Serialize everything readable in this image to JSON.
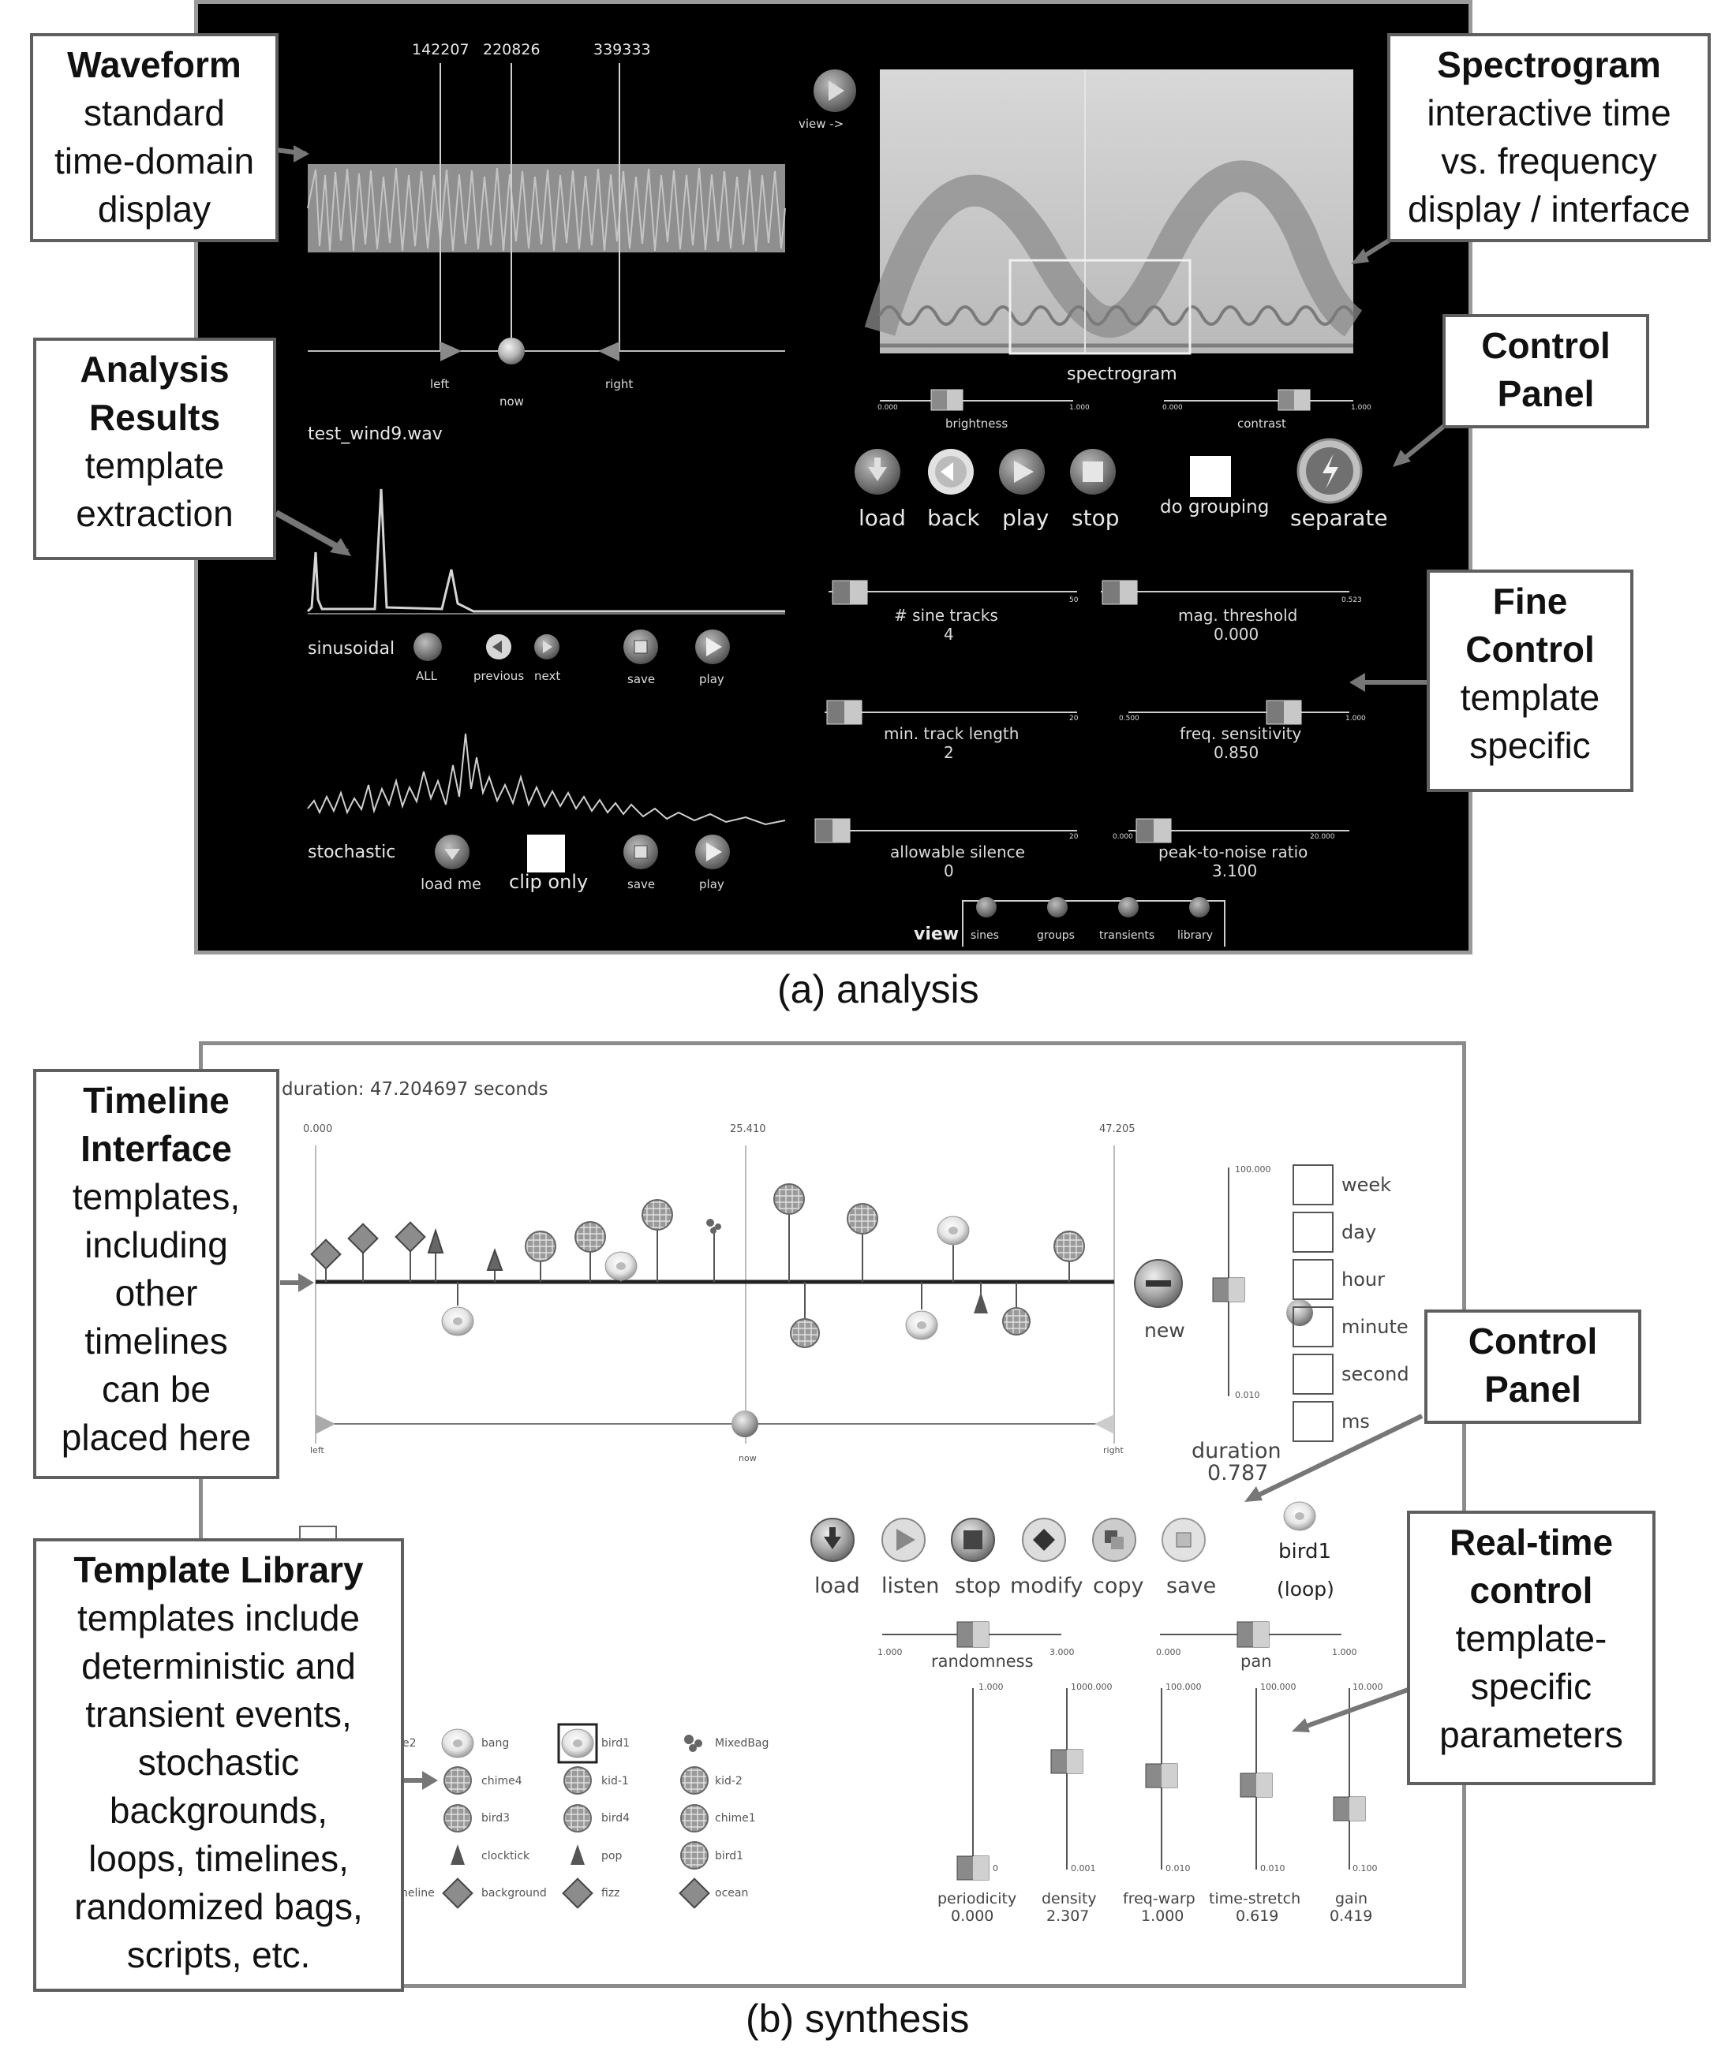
{
  "analysis": {
    "caption": "(a) analysis",
    "markers": [
      "142207",
      "220826",
      "339333"
    ],
    "handles": {
      "left": "left",
      "now": "now",
      "right": "right"
    },
    "view_label": "view ->",
    "filename": "test_wind9.wav",
    "spectrogram_label": "spectrogram",
    "brightness": {
      "label": "brightness",
      "min": "0.000",
      "max": "1.000"
    },
    "contrast": {
      "label": "contrast",
      "min": "0.000",
      "max": "1.000"
    },
    "buttons": {
      "load": "load",
      "back": "back",
      "play": "play",
      "stop": "stop",
      "do_grouping": "do  grouping",
      "separate": "separate"
    },
    "sinusoidal": {
      "label": "sinusoidal",
      "all": "ALL",
      "previous": "previous",
      "next": "next",
      "save": "save",
      "play": "play"
    },
    "stochastic": {
      "label": "stochastic",
      "load_me": "load  me",
      "clip_only": "clip  only",
      "save": "save",
      "play": "play"
    },
    "sliders": {
      "sine_tracks": {
        "label": "#  sine  tracks",
        "value": "4",
        "max": "50"
      },
      "mag_threshold": {
        "label": "mag.  threshold",
        "value": "0.000",
        "max": "0.523"
      },
      "min_track_length": {
        "label": "min.  track  length",
        "value": "2",
        "max": "20"
      },
      "freq_sensitivity": {
        "label": "freq.  sensitivity",
        "value": "0.850",
        "min": "0.500",
        "max": "1.000"
      },
      "allowable_silence": {
        "label": "allowable  silence",
        "value": "0",
        "max": "20"
      },
      "peak_to_noise": {
        "label": "peak-to-noise  ratio",
        "value": "3.100",
        "min": "0.000",
        "max": "20.000"
      }
    },
    "view_tabs": {
      "label": "view",
      "items": [
        "sines",
        "groups",
        "transients",
        "library"
      ]
    }
  },
  "synthesis": {
    "caption": "(b) synthesis",
    "duration_text": "duration:  47.204697  seconds",
    "ruler": {
      "start": "0.000",
      "mid": "25.410",
      "end": "47.205"
    },
    "handles": {
      "left": "left",
      "now": "now",
      "right": "right"
    },
    "new_label": "new",
    "duration": {
      "label": "duration",
      "value": "0.787",
      "max": "100.000",
      "min": "0.010"
    },
    "units": [
      "week",
      "day",
      "hour",
      "minute",
      "second",
      "ms"
    ],
    "buttons": {
      "load": "load",
      "listen": "listen",
      "stop": "stop",
      "modify": "modify",
      "copy": "copy",
      "save": "save"
    },
    "current_template": {
      "name": "bird1",
      "mode": "(loop)"
    },
    "randomness": {
      "label": "randomness",
      "min": "1.000",
      "max": "3.000"
    },
    "pan": {
      "label": "pan",
      "min": "0.000",
      "max": "1.000"
    },
    "params": [
      {
        "label": "periodicity",
        "value": "0.000",
        "max": "1.000",
        "min": "0"
      },
      {
        "label": "density",
        "value": "2.307",
        "max": "1000.000",
        "min": "0.001"
      },
      {
        "label": "freq-warp",
        "value": "1.000",
        "max": "100.000",
        "min": "0.010"
      },
      {
        "label": "time-stretch",
        "value": "0.619",
        "max": "100.000",
        "min": "0.010"
      },
      {
        "label": "gain",
        "value": "0.419",
        "max": "10.000",
        "min": "0.100"
      }
    ],
    "library": {
      "col0": [
        "e2",
        "",
        "",
        "",
        "neline"
      ],
      "col1": [
        "bang",
        "chime4",
        "bird3",
        "clocktick",
        "background"
      ],
      "col2": [
        "bird1",
        "kid-1",
        "bird4",
        "pop",
        "fizz"
      ],
      "col3": [
        "MixedBag",
        "kid-2",
        "chime1",
        "bird1",
        "ocean"
      ]
    }
  },
  "callouts": {
    "waveform": {
      "title": "Waveform",
      "lines": [
        "standard",
        "time-domain",
        "display"
      ]
    },
    "spectrogram": {
      "title": "Spectrogram",
      "lines": [
        "interactive time",
        "vs. frequency",
        "display / interface"
      ]
    },
    "analysis_results": {
      "title": [
        "Analysis",
        "Results"
      ],
      "lines": [
        "template",
        "extraction"
      ]
    },
    "control_panel_a": {
      "title": [
        "Control",
        "Panel"
      ]
    },
    "fine_control": {
      "title": [
        "Fine",
        "Control"
      ],
      "lines": [
        "template",
        "specific"
      ]
    },
    "timeline": {
      "title": [
        "Timeline",
        "Interface"
      ],
      "lines": [
        "templates,",
        "including",
        "other",
        "timelines",
        "can be",
        "placed here"
      ]
    },
    "control_panel_b": {
      "title": [
        "Control",
        "Panel"
      ]
    },
    "realtime": {
      "title": [
        "Real-time",
        "control"
      ],
      "lines": [
        "template-",
        "specific",
        "parameters"
      ]
    },
    "library": {
      "title": "Template Library",
      "lines": [
        "templates include",
        "deterministic and",
        "transient events,",
        "stochastic",
        "backgrounds,",
        "loops, timelines,",
        "randomized bags,",
        "scripts, etc."
      ]
    }
  }
}
